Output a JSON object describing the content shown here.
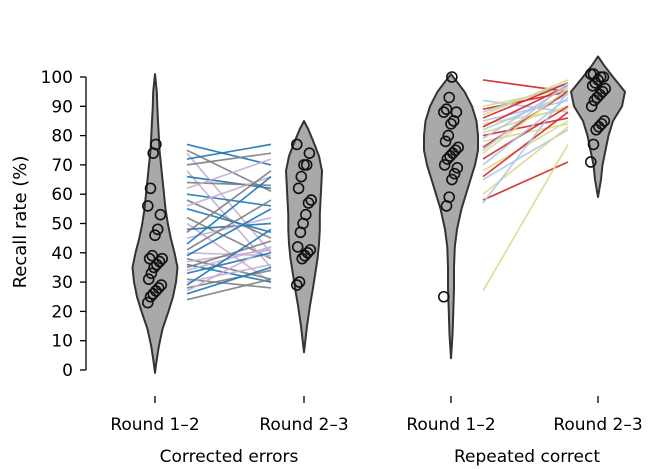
{
  "chart_data": {
    "type": "violin",
    "ylabel": "Recall rate (%)",
    "ylim": [
      0,
      100
    ],
    "yticks": [
      0,
      10,
      20,
      30,
      40,
      50,
      60,
      70,
      80,
      90,
      100
    ],
    "grid": false,
    "panels": [
      {
        "group": "Corrected errors",
        "categories": [
          "Round 1–2",
          "Round 2–3"
        ],
        "violins": [
          {
            "category": "Round 1–2",
            "profile": [
              [
                -1,
                0
              ],
              [
                3,
                1
              ],
              [
                8,
                2.5
              ],
              [
                14,
                5
              ],
              [
                20,
                9
              ],
              [
                25,
                12
              ],
              [
                30,
                14
              ],
              [
                35,
                15
              ],
              [
                40,
                13
              ],
              [
                45,
                10.5
              ],
              [
                50,
                8.5
              ],
              [
                55,
                7
              ],
              [
                60,
                6
              ],
              [
                65,
                5
              ],
              [
                70,
                4
              ],
              [
                75,
                3
              ],
              [
                80,
                2.5
              ],
              [
                85,
                2
              ],
              [
                90,
                1.5
              ],
              [
                95,
                1.2
              ],
              [
                101,
                0
              ]
            ],
            "points": [
              23,
              25,
              26,
              27,
              28,
              29,
              31,
              33,
              35,
              36,
              37,
              38,
              38,
              39,
              46,
              48,
              53,
              56,
              62,
              74,
              77
            ]
          },
          {
            "category": "Round 2–3",
            "profile": [
              [
                6,
                0
              ],
              [
                15,
                2
              ],
              [
                22,
                4
              ],
              [
                28,
                6
              ],
              [
                33,
                7.5
              ],
              [
                38,
                9
              ],
              [
                43,
                10
              ],
              [
                48,
                10.5
              ],
              [
                53,
                10.5
              ],
              [
                58,
                11
              ],
              [
                63,
                11.5
              ],
              [
                68,
                12
              ],
              [
                73,
                10
              ],
              [
                77,
                7
              ],
              [
                82,
                3
              ],
              [
                85,
                0
              ]
            ],
            "points": [
              29,
              30,
              38,
              39,
              40,
              41,
              42,
              47,
              50,
              53,
              57,
              58,
              62,
              66,
              70,
              70,
              74,
              77
            ]
          }
        ],
        "lines": [
          [
            77,
            70
          ],
          [
            75,
            61
          ],
          [
            74,
            40
          ],
          [
            72,
            77
          ],
          [
            70,
            74
          ],
          [
            68,
            35
          ],
          [
            66,
            62
          ],
          [
            64,
            63
          ],
          [
            62,
            72
          ],
          [
            60,
            56
          ],
          [
            58,
            45
          ],
          [
            56,
            66
          ],
          [
            55,
            47
          ],
          [
            52,
            38
          ],
          [
            50,
            30
          ],
          [
            48,
            50
          ],
          [
            47,
            68
          ],
          [
            45,
            52
          ],
          [
            43,
            66
          ],
          [
            41,
            58
          ],
          [
            40,
            39
          ],
          [
            39,
            55
          ],
          [
            38,
            31
          ],
          [
            37,
            41
          ],
          [
            36,
            30
          ],
          [
            35,
            44
          ],
          [
            34,
            42
          ],
          [
            33,
            40
          ],
          [
            31,
            28
          ],
          [
            30,
            36
          ],
          [
            29,
            48
          ],
          [
            28,
            34
          ],
          [
            27,
            42
          ],
          [
            26,
            35
          ],
          [
            24,
            31
          ]
        ]
      },
      {
        "group": "Repeated correct",
        "categories": [
          "Round 1–2",
          "Round 2–3"
        ],
        "violins": [
          {
            "category": "Round 1–2",
            "profile": [
              [
                4,
                0
              ],
              [
                12,
                1
              ],
              [
                20,
                1.5
              ],
              [
                28,
                2
              ],
              [
                35,
                2
              ],
              [
                42,
                2.5
              ],
              [
                48,
                4
              ],
              [
                55,
                7
              ],
              [
                60,
                10
              ],
              [
                65,
                13
              ],
              [
                70,
                16
              ],
              [
                75,
                18
              ],
              [
                80,
                18
              ],
              [
                85,
                17
              ],
              [
                90,
                14
              ],
              [
                95,
                9
              ],
              [
                99,
                3
              ],
              [
                101,
                0
              ]
            ],
            "points": [
              25,
              56,
              59,
              65,
              67,
              69,
              70,
              72,
              73,
              74,
              75,
              76,
              78,
              80,
              84,
              85,
              88,
              88,
              89,
              93,
              100
            ]
          },
          {
            "category": "Round 2–3",
            "profile": [
              [
                59,
                0
              ],
              [
                65,
                2
              ],
              [
                70,
                3
              ],
              [
                75,
                5
              ],
              [
                80,
                7
              ],
              [
                85,
                10
              ],
              [
                90,
                16
              ],
              [
                95,
                18
              ],
              [
                100,
                10
              ],
              [
                104,
                4
              ],
              [
                107,
                0
              ]
            ],
            "points": [
              71,
              77,
              82,
              83,
              84,
              85,
              90,
              92,
              93,
              94,
              95,
              96,
              97,
              98,
              99,
              100,
              100,
              101,
              101
            ]
          }
        ],
        "lines": [
          [
            99,
            95
          ],
          [
            92,
            88
          ],
          [
            90,
            96
          ],
          [
            89,
            95
          ],
          [
            88,
            98
          ],
          [
            87,
            99
          ],
          [
            86,
            98
          ],
          [
            85,
            92
          ],
          [
            84,
            89
          ],
          [
            83,
            97
          ],
          [
            82,
            94
          ],
          [
            81,
            90
          ],
          [
            80,
            86
          ],
          [
            79,
            97
          ],
          [
            78,
            84
          ],
          [
            76,
            95
          ],
          [
            75,
            98
          ],
          [
            74,
            96
          ],
          [
            72,
            90
          ],
          [
            70,
            93
          ],
          [
            68,
            85
          ],
          [
            66,
            88
          ],
          [
            65,
            82
          ],
          [
            60,
            83
          ],
          [
            58,
            71
          ],
          [
            57,
            95
          ],
          [
            27,
            77
          ]
        ]
      }
    ],
    "colors": {
      "violin_fill": "#a9a9a9",
      "violin_stroke": "#333333",
      "point_stroke": "#111111",
      "line_palette": [
        "#1f77b4",
        "#ff7f0e",
        "#2ca02c",
        "#d62728",
        "#9467bd",
        "#8c564b",
        "#e377c2",
        "#7f7f7f",
        "#bcbd22",
        "#17becf",
        "#aec7e8",
        "#ffbb78",
        "#98df8a",
        "#ff9896",
        "#c5b0d5",
        "#c49c94",
        "#f7b6d2",
        "#dbdb8d",
        "#9edae5",
        "#3b6fb6",
        "#e8a13c"
      ]
    }
  }
}
